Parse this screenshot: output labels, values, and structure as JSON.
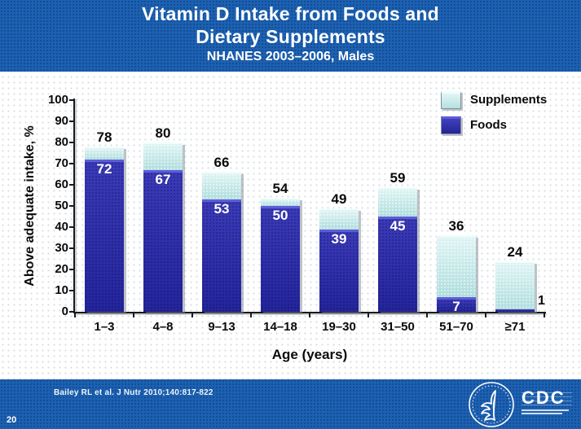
{
  "header": {
    "title_lines": [
      "Vitamin D Intake from Foods and",
      "Dietary Supplements"
    ],
    "subtitle": "NHANES 2003–2006, Males"
  },
  "legend": {
    "items": [
      {
        "label": "Supplements",
        "color": "#C9EAEA"
      },
      {
        "label": "Foods",
        "color": "#2B2BA2"
      }
    ]
  },
  "chart_data": {
    "type": "bar",
    "stacked": true,
    "title": "Vitamin D Intake from Foods and Dietary Supplements",
    "subtitle": "NHANES 2003–2006, Males",
    "categories": [
      "1–3",
      "4–8",
      "9–13",
      "14–18",
      "19–30",
      "31–50",
      "51–70",
      "≥71"
    ],
    "series": [
      {
        "name": "Foods",
        "values": [
          72,
          67,
          53,
          50,
          39,
          45,
          7,
          1
        ]
      },
      {
        "name": "Supplements",
        "values": [
          6,
          13,
          13,
          4,
          10,
          14,
          29,
          23
        ]
      }
    ],
    "totals": [
      78,
      80,
      66,
      54,
      49,
      59,
      36,
      24
    ],
    "xlabel": "Age (years)",
    "ylabel": "Above adequate intake, %",
    "ylim": [
      0,
      100
    ],
    "ytick_step": 10,
    "grid": false,
    "legend_position": "top-right"
  },
  "footer": {
    "citation": "Bailey RL et al. J Nutr 2010;140:817-822",
    "page_number": "20",
    "cdc_label": "CDC"
  },
  "colors": {
    "slide_blue": "#1C61B2",
    "foods_blue": "#2B2BA2",
    "foods_highlight": "#5D5DD8",
    "supplements_teal": "#C9EAEA",
    "supplements_highlight": "#F2FDFD",
    "axis_black": "#1A1A1A",
    "text_white": "#FFFFFF"
  }
}
